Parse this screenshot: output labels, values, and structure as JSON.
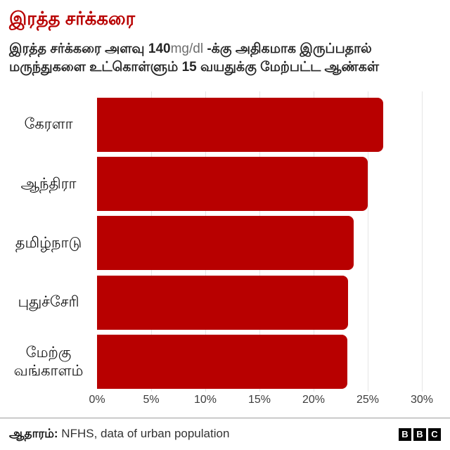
{
  "header": {
    "title": "இரத்த சர்க்கரை",
    "subtitle": {
      "part1": "இரத்த சர்க்கரை அளவு 140",
      "part2": "mg/dl",
      "part3": " -க்கு அதிகமாக இருப்பதால் மருந்துகளை உட்கொள்ளும் 15 வயதுக்கு மேற்பட்ட ஆண்கள்"
    }
  },
  "chart_data": {
    "type": "bar",
    "orientation": "horizontal",
    "title": "இரத்த சர்க்கரை",
    "categories": [
      "கேரளா",
      "ஆந்திரா",
      "தமிழ்நாடு",
      "புதுச்சேரி",
      "மேற்கு வங்காளம்"
    ],
    "values": [
      26.4,
      25.0,
      23.7,
      23.2,
      23.1
    ],
    "unit": "%",
    "xlim": [
      0,
      30
    ],
    "x_ticks": [
      "0%",
      "5%",
      "10%",
      "15%",
      "20%",
      "25%",
      "30%"
    ],
    "x_tick_values": [
      0,
      5,
      10,
      15,
      20,
      25,
      30
    ],
    "grid": true,
    "legend": false,
    "bar_color": "#b80000",
    "gridline_color": "#e5e5e5"
  },
  "footer": {
    "source_label": "ஆதாரம்:",
    "source_text": " NFHS, data of urban population",
    "logo_letters": [
      "B",
      "B",
      "C"
    ]
  }
}
